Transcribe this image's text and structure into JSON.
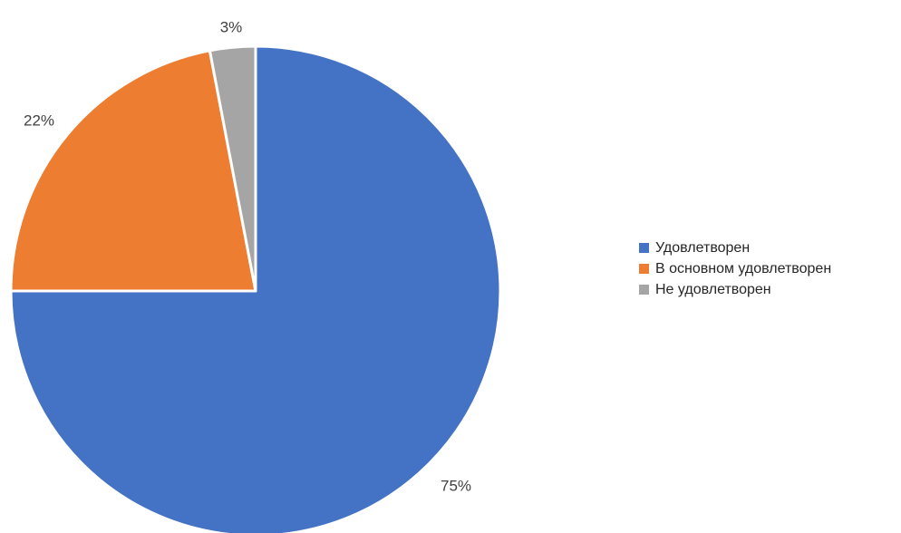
{
  "chart_data": {
    "type": "pie",
    "categories": [
      "Удовлетворен",
      "В основном удовлетворен",
      "Не удовлетворен"
    ],
    "values": [
      75,
      22,
      3
    ],
    "data_labels": [
      "75%",
      "22%",
      "3%"
    ],
    "colors": [
      "#4472C4",
      "#ED7D31",
      "#A5A5A5"
    ],
    "legend_position": "right"
  },
  "legend": {
    "items": [
      {
        "label": "Удовлетворен",
        "color": "#4472C4"
      },
      {
        "label": "В основном удовлетворен",
        "color": "#ED7D31"
      },
      {
        "label": "Не удовлетворен",
        "color": "#A5A5A5"
      }
    ]
  }
}
